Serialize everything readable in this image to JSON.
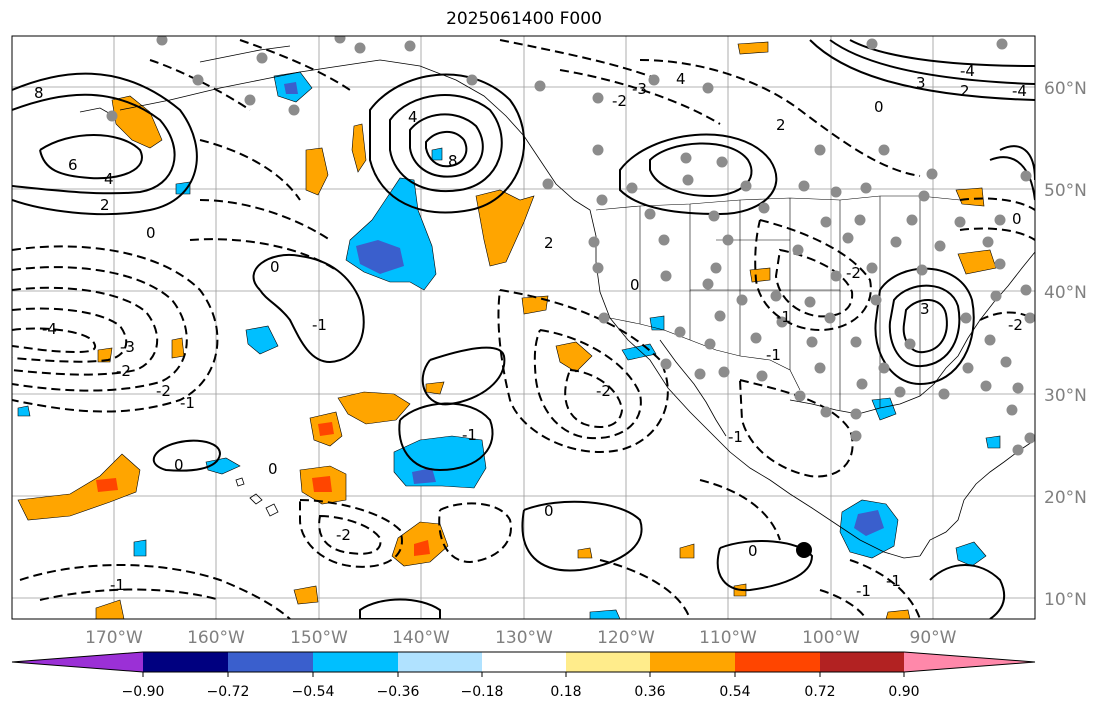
{
  "title": "2025061400 F000",
  "map": {
    "lon_range": [
      -180,
      -80
    ],
    "lat_range": [
      8,
      65
    ],
    "lat_labels": [
      "60°N",
      "50°N",
      "40°N",
      "30°N",
      "20°N",
      "10°N"
    ],
    "lon_labels": [
      "170°W",
      "160°W",
      "150°W",
      "140°W",
      "130°W",
      "120°W",
      "110°W",
      "100°W",
      "90°W"
    ],
    "gridlines": true,
    "station_marker_color": "#8c8c8c",
    "highlight_marker_color": "#000000"
  },
  "colorbar": {
    "ticks": [
      "−0.90",
      "−0.72",
      "−0.54",
      "−0.36",
      "−0.18",
      "0.18",
      "0.36",
      "0.54",
      "0.72",
      "0.90"
    ],
    "colors": [
      "#9b30d6",
      "#000080",
      "#3a5fcd",
      "#00bfff",
      "#b0e2ff",
      "#ffffff",
      "#ffec8b",
      "#ffa500",
      "#ff4500",
      "#b22222",
      "#ff88aa"
    ],
    "extend": "both"
  },
  "contour_labels": [
    "8",
    "6",
    "4",
    "2",
    "0",
    "4",
    "8",
    "4",
    "2",
    "0",
    "-1",
    "-2",
    "-3",
    "-4",
    "0",
    "-1",
    "0",
    "-1",
    "-2",
    "-1",
    "-2",
    "0",
    "-2",
    "-1",
    "0",
    "-1",
    "3",
    "2",
    "-3",
    "0",
    "-4",
    "3",
    "-2",
    "-1",
    "-4",
    "2",
    "-2",
    "-1",
    "0",
    "-2",
    "-1",
    "0"
  ]
}
